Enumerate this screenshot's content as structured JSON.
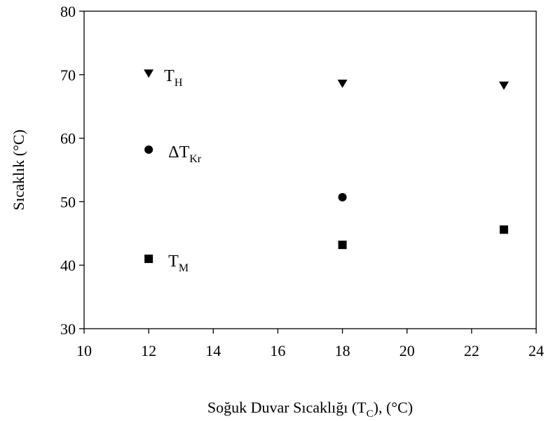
{
  "chart_data": {
    "type": "scatter",
    "xlabel": {
      "main": "Soğuk Duvar Sıcaklığı (T",
      "sub": "C",
      "tail": "), (°C)"
    },
    "ylabel": "Sıcaklık (°C)",
    "xlim": [
      10,
      24
    ],
    "ylim": [
      30,
      80
    ],
    "xticks": [
      10,
      12,
      14,
      16,
      18,
      20,
      22,
      24
    ],
    "yticks": [
      30,
      40,
      50,
      60,
      70,
      80
    ],
    "grid": false,
    "legend": "inline",
    "series": [
      {
        "name": "T",
        "sub": "H",
        "marker": "triangle-down",
        "x": [
          12,
          18,
          23
        ],
        "y": [
          70.2,
          68.6,
          68.3
        ]
      },
      {
        "name": "ΔT",
        "sub": "Kr",
        "marker": "circle",
        "x": [
          12,
          18
        ],
        "y": [
          58.2,
          50.7
        ]
      },
      {
        "name": "T",
        "sub": "M",
        "marker": "square",
        "x": [
          12,
          18,
          23
        ],
        "y": [
          41.0,
          43.2,
          45.6
        ]
      }
    ]
  }
}
